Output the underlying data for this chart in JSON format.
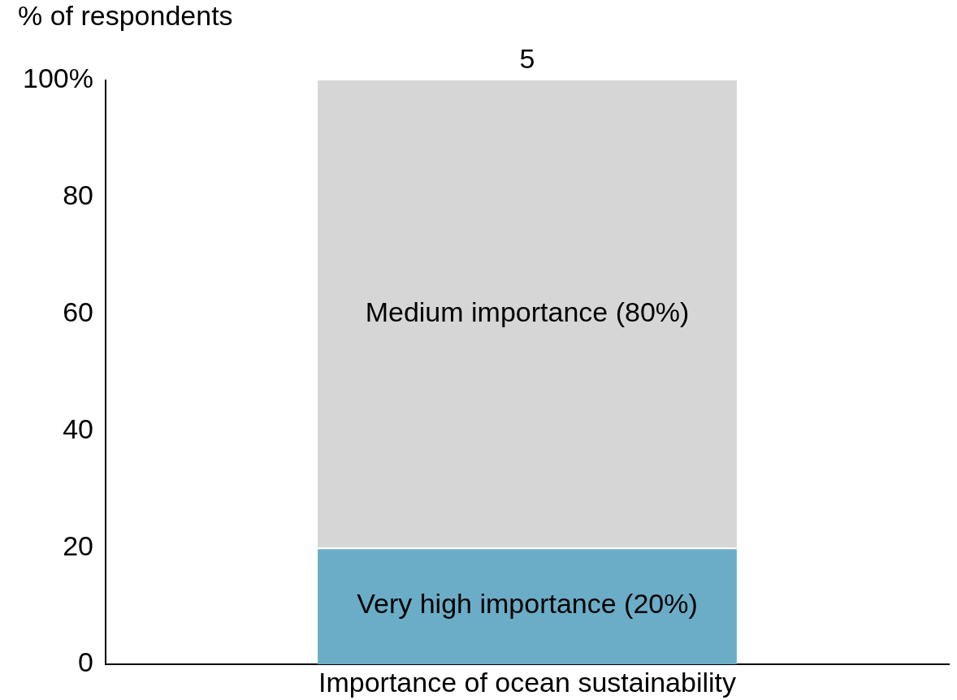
{
  "chart_data": {
    "type": "bar",
    "ylabel": "% of respondents",
    "categories": [
      "Importance of ocean sustainability"
    ],
    "series": [
      {
        "name": "Very high importance (20%)",
        "color": "#6badc6",
        "values": [
          20
        ]
      },
      {
        "name": "Medium importance (80%)",
        "color": "#d6d6d6",
        "values": [
          80
        ]
      }
    ],
    "stacked": true,
    "annotations": [
      {
        "text": "5",
        "x": "Importance of ocean sustainability",
        "y": 100
      }
    ],
    "ylim": [
      0,
      100
    ],
    "yticks": [
      0,
      20,
      40,
      60,
      80,
      {
        "value": 100,
        "label": "100%"
      }
    ],
    "grid": false,
    "legend": false
  }
}
